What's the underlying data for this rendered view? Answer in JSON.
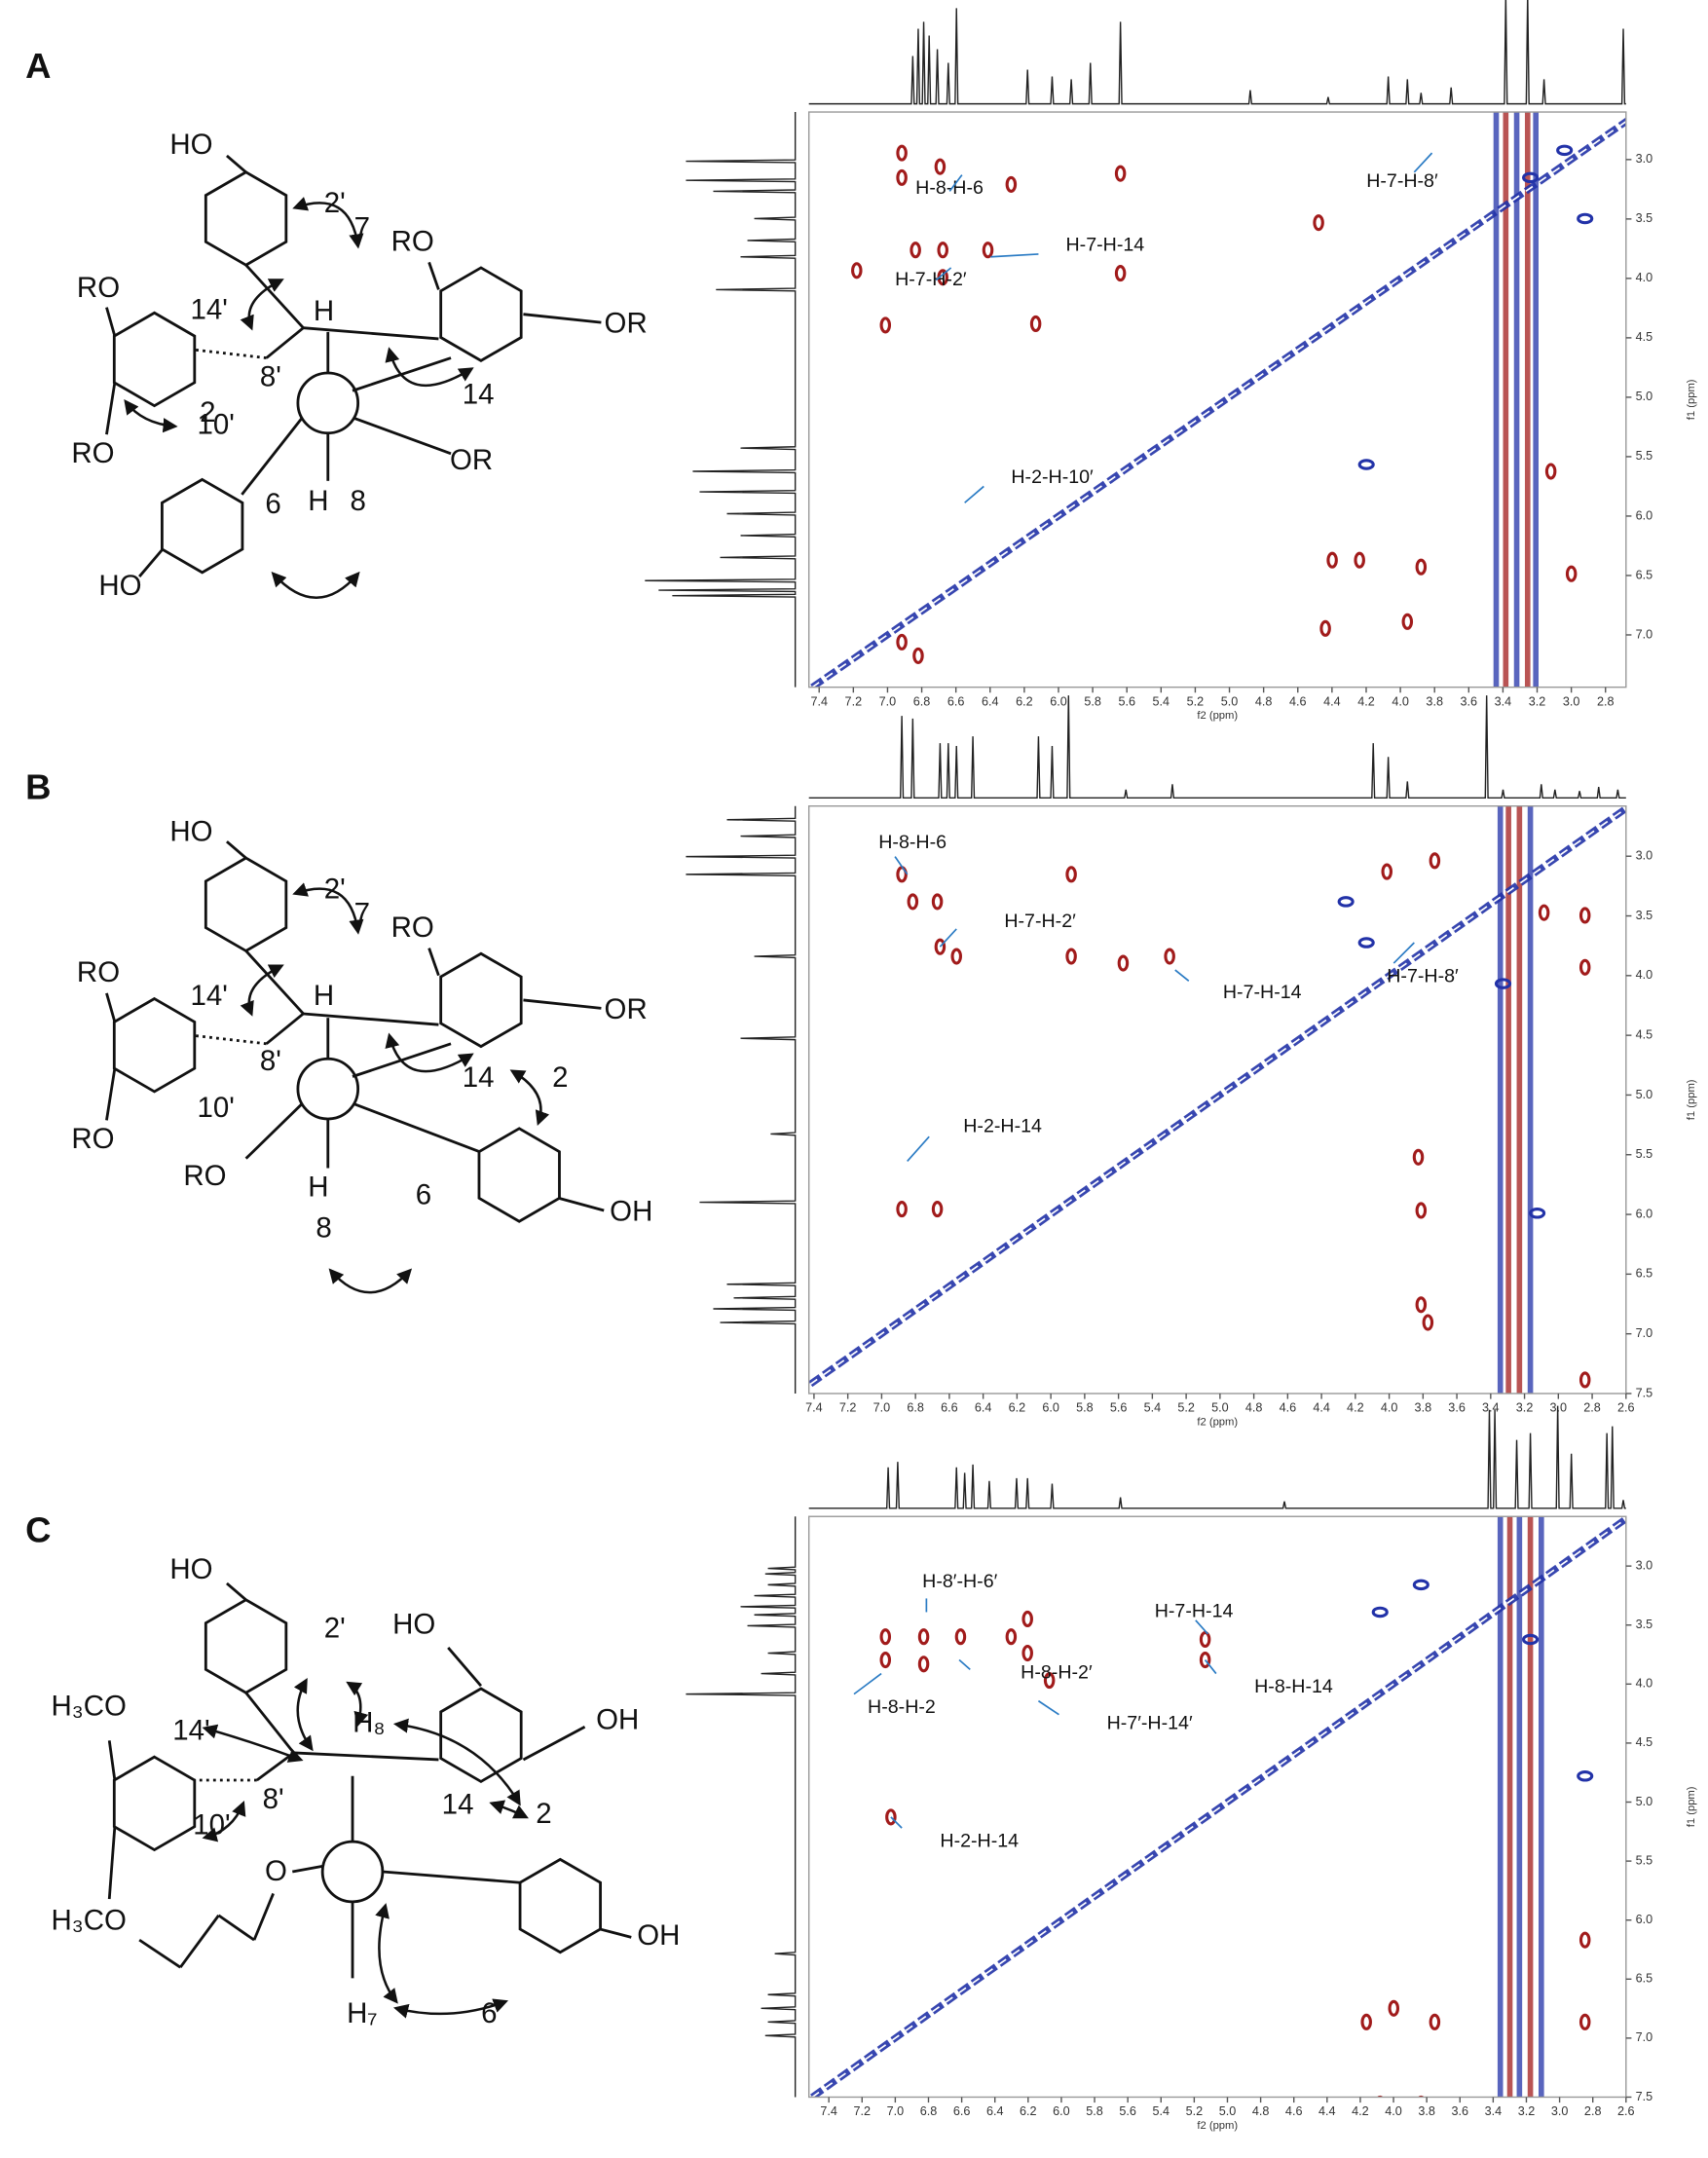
{
  "panels": [
    {
      "label": "A",
      "structure_labels": [
        "HO",
        "2'",
        "7",
        "RO",
        "RO",
        "H",
        "OR",
        "14'",
        "8'",
        "14",
        "10'",
        "RO",
        "2",
        "OR",
        "6",
        "H",
        "8",
        "HO"
      ],
      "spectrum": {
        "x_label": "f2 (ppm)",
        "y_label": "f1 (ppm)",
        "xlim": [
          7.46,
          2.68
        ],
        "ylim": [
          2.6,
          7.44
        ],
        "xticks": [
          7.4,
          7.2,
          {
            "value": 7,
            "label": "7.0"
          },
          6.8,
          6.6,
          6.4,
          6.2,
          {
            "value": 6,
            "label": "6.0"
          },
          5.8,
          5.6,
          5.4,
          5.2,
          {
            "value": 5,
            "label": "5.0"
          },
          4.8,
          4.6,
          4.4,
          4.2,
          {
            "value": 4,
            "label": "4.0"
          },
          3.8,
          3.6,
          3.4,
          3.2,
          {
            "value": 3,
            "label": "3.0"
          },
          2.8
        ],
        "yticks": [
          {
            "value": 3,
            "label": "3.0"
          },
          3.5,
          {
            "value": 4,
            "label": "4.0"
          },
          4.5,
          {
            "value": 5,
            "label": "5.0"
          },
          5.5,
          {
            "value": 6,
            "label": "6.0"
          },
          6.5,
          {
            "value": 7,
            "label": "7.0"
          }
        ],
        "annotations": [
          "H-7-H-8′",
          "H-8-H-6",
          "H-7-H-14",
          "H-7-H-2′",
          "H-2-H-10′"
        ]
      }
    },
    {
      "label": "B",
      "structure_labels": [
        "HO",
        "2'",
        "7",
        "RO",
        "RO",
        "H",
        "OR",
        "14'",
        "8'",
        "14",
        "10'",
        "RO",
        "2",
        "RO",
        "H",
        "6",
        "8",
        "OH"
      ],
      "spectrum": {
        "x_label": "f2 (ppm)",
        "y_label": "f1 (ppm)",
        "xlim": [
          7.43,
          2.6
        ],
        "ylim": [
          2.58,
          7.5
        ],
        "xticks": [
          7.4,
          7.2,
          {
            "value": 7,
            "label": "7.0"
          },
          6.8,
          6.6,
          6.4,
          6.2,
          {
            "value": 6,
            "label": "6.0"
          },
          5.8,
          5.6,
          5.4,
          5.2,
          {
            "value": 5,
            "label": "5.0"
          },
          4.8,
          4.6,
          4.4,
          4.2,
          {
            "value": 4,
            "label": "4.0"
          },
          3.8,
          3.6,
          3.4,
          3.2,
          {
            "value": 3,
            "label": "3.0"
          },
          2.8,
          2.6
        ],
        "yticks": [
          {
            "value": 3,
            "label": "3.0"
          },
          3.5,
          {
            "value": 4,
            "label": "4.0"
          },
          4.5,
          {
            "value": 5,
            "label": "5.0"
          },
          5.5,
          {
            "value": 6,
            "label": "6.0"
          },
          6.5,
          {
            "value": 7,
            "label": "7.0"
          },
          7.5
        ],
        "annotations": [
          "H-8-H-6",
          "H-7-H-2′",
          "H-7-H-8′",
          "H-7-H-14",
          "H-2-H-14"
        ]
      }
    },
    {
      "label": "C",
      "structure_labels": [
        "HO",
        "2'",
        "HO",
        "H₃CO",
        "14'",
        "H₈",
        "OH",
        "8'",
        "14",
        "2",
        "10'",
        "H₃CO",
        "O",
        "OH",
        "H₇",
        "6"
      ],
      "spectrum": {
        "x_label": "f2 (ppm)",
        "y_label": "f1 (ppm)",
        "xlim": [
          7.52,
          2.6
        ],
        "ylim": [
          2.58,
          7.5
        ],
        "xticks": [
          7.4,
          7.2,
          {
            "value": 7,
            "label": "7.0"
          },
          6.8,
          6.6,
          6.4,
          6.2,
          {
            "value": 6,
            "label": "6.0"
          },
          5.8,
          5.6,
          5.4,
          5.2,
          {
            "value": 5,
            "label": "5.0"
          },
          4.8,
          4.6,
          4.4,
          4.2,
          {
            "value": 4,
            "label": "4.0"
          },
          3.8,
          3.6,
          3.4,
          3.2,
          {
            "value": 3,
            "label": "3.0"
          },
          2.8,
          2.6
        ],
        "yticks": [
          {
            "value": 3,
            "label": "3.0"
          },
          3.5,
          {
            "value": 4,
            "label": "4.0"
          },
          4.5,
          {
            "value": 5,
            "label": "5.0"
          },
          5.5,
          {
            "value": 6,
            "label": "6.0"
          },
          6.5,
          {
            "value": 7,
            "label": "7.0"
          },
          7.5
        ],
        "annotations": [
          "H-8′-H-6′",
          "H-7-H-14",
          "H-8-H-2′",
          "H-8-H-14",
          "H-8-H-2",
          "H-7′-H-14′",
          "H-2-H-14"
        ]
      }
    }
  ]
}
